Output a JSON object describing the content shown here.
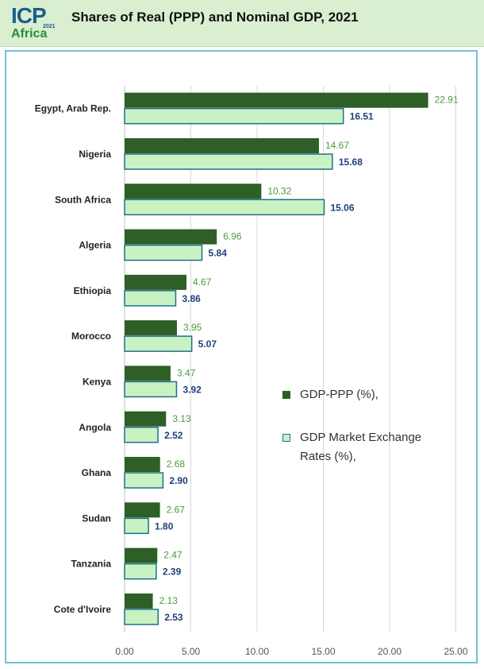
{
  "header": {
    "title": "Shares of Real (PPP) and Nominal GDP, 2021",
    "logo": {
      "top": "ICP",
      "year": "2021",
      "bottom": "Africa"
    }
  },
  "colors": {
    "ppp": "#2d5f26",
    "market": "#c9f2c2",
    "market_border": "#1f6f8f",
    "ppp_label": "#4c9a3c",
    "market_label": "#1f3f7a",
    "grid": "#d9d9d9"
  },
  "chart_data": {
    "type": "bar",
    "orientation": "horizontal",
    "categories": [
      "Egypt, Arab Rep.",
      "Nigeria",
      "South Africa",
      "Algeria",
      "Ethiopia",
      "Morocco",
      "Kenya",
      "Angola",
      "Ghana",
      "Sudan",
      "Tanzania",
      "Cote d'Ivoire"
    ],
    "series": [
      {
        "name": "GDP-PPP  (%),",
        "values": [
          22.91,
          14.67,
          10.32,
          6.96,
          4.67,
          3.95,
          3.47,
          3.13,
          2.68,
          2.67,
          2.47,
          2.13
        ],
        "labels": [
          "22.91",
          "14.67",
          "10.32",
          "6.96",
          "4.67",
          "3.95",
          "3.47",
          "3.13",
          "2.68",
          "2.67",
          "2.47",
          "2.13"
        ]
      },
      {
        "name": "GDP Market Exchange Rates (%),",
        "values": [
          16.51,
          15.68,
          15.06,
          5.84,
          3.86,
          5.07,
          3.92,
          2.52,
          2.9,
          1.8,
          2.39,
          2.53
        ],
        "labels": [
          "16.51",
          "15.68",
          "15.06",
          "5.84",
          "3.86",
          "5.07",
          "3.92",
          "2.52",
          "2.90",
          "1.80",
          "2.39",
          "2.53"
        ]
      }
    ],
    "xlim": [
      0,
      25
    ],
    "xticks": [
      0,
      5,
      10,
      15,
      20,
      25
    ],
    "xtick_labels": [
      "0.00",
      "5.00",
      "10.00",
      "15.00",
      "20.00",
      "25.00"
    ],
    "grid": true,
    "legend": {
      "placement": "right-middle",
      "line1": "GDP-PPP  (%),",
      "line2a": "GDP Market Exchange",
      "line2b": "Rates (%),"
    }
  }
}
